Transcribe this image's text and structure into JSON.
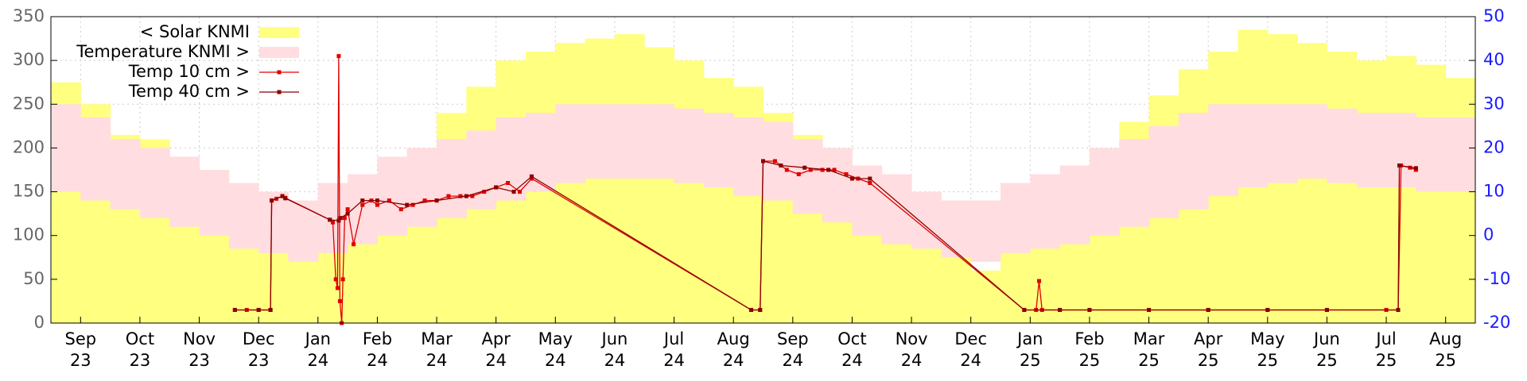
{
  "chart_data": {
    "type": "line",
    "grid": true,
    "legend": "upper left",
    "xlim": [
      -0.5,
      23.5
    ],
    "ylim": [
      0,
      350
    ],
    "yticks": [
      0,
      50,
      100,
      150,
      200,
      250,
      300,
      350
    ],
    "y2lim": [
      -20,
      50
    ],
    "y2ticks": [
      -20,
      -10,
      0,
      10,
      20,
      30,
      40,
      50
    ],
    "xticks": [
      {
        "value": 0,
        "label": [
          "Sep",
          "23"
        ]
      },
      {
        "value": 1,
        "label": [
          "Oct",
          "23"
        ]
      },
      {
        "value": 2,
        "label": [
          "Nov",
          "23"
        ]
      },
      {
        "value": 3,
        "label": [
          "Dec",
          "23"
        ]
      },
      {
        "value": 4,
        "label": [
          "Jan",
          "24"
        ]
      },
      {
        "value": 5,
        "label": [
          "Feb",
          "24"
        ]
      },
      {
        "value": 6,
        "label": [
          "Mar",
          "24"
        ]
      },
      {
        "value": 7,
        "label": [
          "Apr",
          "24"
        ]
      },
      {
        "value": 8,
        "label": [
          "May",
          "24"
        ]
      },
      {
        "value": 9,
        "label": [
          "Jun",
          "24"
        ]
      },
      {
        "value": 10,
        "label": [
          "Jul",
          "24"
        ]
      },
      {
        "value": 11,
        "label": [
          "Aug",
          "24"
        ]
      },
      {
        "value": 12,
        "label": [
          "Sep",
          "24"
        ]
      },
      {
        "value": 13,
        "label": [
          "Oct",
          "24"
        ]
      },
      {
        "value": 14,
        "label": [
          "Nov",
          "24"
        ]
      },
      {
        "value": 15,
        "label": [
          "Dec",
          "24"
        ]
      },
      {
        "value": 16,
        "label": [
          "Jan",
          "25"
        ]
      },
      {
        "value": 17,
        "label": [
          "Feb",
          "25"
        ]
      },
      {
        "value": 18,
        "label": [
          "Mar",
          "25"
        ]
      },
      {
        "value": 19,
        "label": [
          "Apr",
          "25"
        ]
      },
      {
        "value": 20,
        "label": [
          "May",
          "25"
        ]
      },
      {
        "value": 21,
        "label": [
          "Jun",
          "25"
        ]
      },
      {
        "value": 22,
        "label": [
          "Jul",
          "25"
        ]
      },
      {
        "value": 23,
        "label": [
          "Aug",
          "25"
        ]
      }
    ],
    "series": [
      {
        "name": "< Solar KNMI",
        "type": "bar",
        "color": "#ffff80",
        "x": [
          -0.5,
          0,
          0.5,
          1,
          1.5,
          2,
          2.5,
          3,
          3.5,
          4,
          4.5,
          5,
          5.5,
          6,
          6.5,
          7,
          7.5,
          8,
          8.5,
          9,
          9.5,
          10,
          10.5,
          11,
          11.5,
          12,
          12.5,
          13,
          13.5,
          14,
          14.5,
          15,
          15.5,
          16,
          16.5,
          17,
          17.5,
          18,
          18.5,
          19,
          19.5,
          20,
          20.5,
          21,
          21.5,
          22,
          22.5,
          23
        ],
        "values": [
          275,
          250,
          215,
          210,
          185,
          160,
          120,
          95,
          80,
          110,
          140,
          170,
          200,
          240,
          270,
          300,
          310,
          320,
          325,
          330,
          315,
          300,
          280,
          270,
          240,
          215,
          190,
          170,
          140,
          110,
          90,
          60,
          95,
          110,
          140,
          190,
          230,
          260,
          290,
          310,
          335,
          330,
          320,
          310,
          300,
          305,
          295,
          280
        ]
      },
      {
        "name": "Temperature KNMI >",
        "type": "band",
        "color": "#ffdde0",
        "axis": "y2",
        "x": [
          -0.5,
          0,
          0.5,
          1,
          1.5,
          2,
          2.5,
          3,
          3.5,
          4,
          4.5,
          5,
          5.5,
          6,
          6.5,
          7,
          7.5,
          8,
          8.5,
          9,
          9.5,
          10,
          10.5,
          11,
          11.5,
          12,
          12.5,
          13,
          13.5,
          14,
          14.5,
          15,
          15.5,
          16,
          16.5,
          17,
          17.5,
          18,
          18.5,
          19,
          19.5,
          20,
          20.5,
          21,
          21.5,
          22,
          22.5,
          23
        ],
        "max": [
          30,
          27,
          22,
          20,
          18,
          15,
          12,
          10,
          8,
          12,
          14,
          18,
          20,
          22,
          24,
          27,
          28,
          30,
          30,
          30,
          30,
          29,
          28,
          27,
          26,
          22,
          20,
          16,
          14,
          10,
          8,
          8,
          12,
          14,
          16,
          20,
          22,
          25,
          28,
          30,
          30,
          30,
          30,
          29,
          28,
          28,
          27,
          27
        ],
        "min": [
          10,
          8,
          6,
          4,
          2,
          0,
          -3,
          -4,
          -6,
          -4,
          -2,
          0,
          2,
          4,
          6,
          8,
          10,
          12,
          13,
          13,
          13,
          12,
          11,
          9,
          8,
          5,
          3,
          0,
          -2,
          -3,
          -5,
          -6,
          -4,
          -3,
          -2,
          0,
          2,
          4,
          6,
          9,
          11,
          12,
          13,
          12,
          11,
          11,
          10,
          10
        ]
      },
      {
        "name": "Temp 10 cm >",
        "type": "line",
        "color": "#e00000",
        "axis": "y2",
        "x": [
          2.6,
          2.8,
          3.0,
          3.2,
          3.22,
          3.3,
          3.4,
          3.45,
          4.2,
          4.25,
          4.3,
          4.33,
          4.35,
          4.37,
          4.4,
          4.42,
          4.45,
          4.5,
          4.6,
          4.75,
          4.9,
          5.0,
          5.2,
          5.4,
          5.6,
          5.8,
          6.0,
          6.2,
          6.4,
          6.6,
          6.8,
          7.0,
          7.2,
          7.4,
          7.6,
          11.3,
          11.45,
          11.5,
          11.7,
          11.9,
          12.1,
          12.3,
          12.5,
          12.7,
          12.9,
          13.1,
          13.3,
          15.9,
          16.1,
          16.15,
          16.2,
          16.5,
          17.0,
          18,
          19,
          20,
          21,
          22,
          22.2,
          22.25,
          22.4,
          22.5
        ],
        "values": [
          -17,
          -17,
          -17,
          -17,
          8,
          8.4,
          9,
          8.6,
          3.6,
          3,
          -10,
          -12,
          41,
          -15,
          -20,
          -10,
          4,
          6,
          -2,
          7,
          8,
          7,
          8,
          6,
          7,
          8,
          8,
          9,
          9,
          9,
          10,
          11,
          12,
          10,
          13,
          -17,
          -17,
          17,
          17,
          15,
          14,
          15,
          15,
          15,
          14,
          13,
          12,
          -17,
          -17,
          -10.4,
          -17,
          -17,
          -17,
          -17,
          -17,
          -17,
          -17,
          -17,
          -17,
          16,
          15.5,
          15
        ]
      },
      {
        "name": "Temp 40 cm >",
        "type": "line",
        "color": "#8b0000",
        "axis": "y2",
        "x": [
          2.6,
          3.0,
          3.2,
          3.22,
          3.4,
          3.45,
          4.2,
          4.35,
          4.38,
          4.5,
          4.75,
          5.0,
          5.5,
          6.0,
          6.5,
          7.0,
          7.3,
          7.6,
          11.3,
          11.45,
          11.5,
          11.8,
          12.2,
          12.6,
          13.0,
          13.3,
          15.9,
          16.5,
          17,
          18,
          19,
          20,
          21,
          22.2,
          22.22,
          22.5
        ],
        "values": [
          -17,
          -17,
          -17,
          8,
          9,
          8.5,
          3.6,
          3.4,
          4,
          5,
          8,
          8,
          7,
          8,
          9,
          11,
          10,
          13.5,
          -17,
          -17,
          17,
          16,
          15.5,
          15,
          13,
          13,
          -17,
          -17,
          -17,
          -17,
          -17,
          -17,
          -17,
          -17,
          16,
          15.4
        ]
      }
    ]
  }
}
